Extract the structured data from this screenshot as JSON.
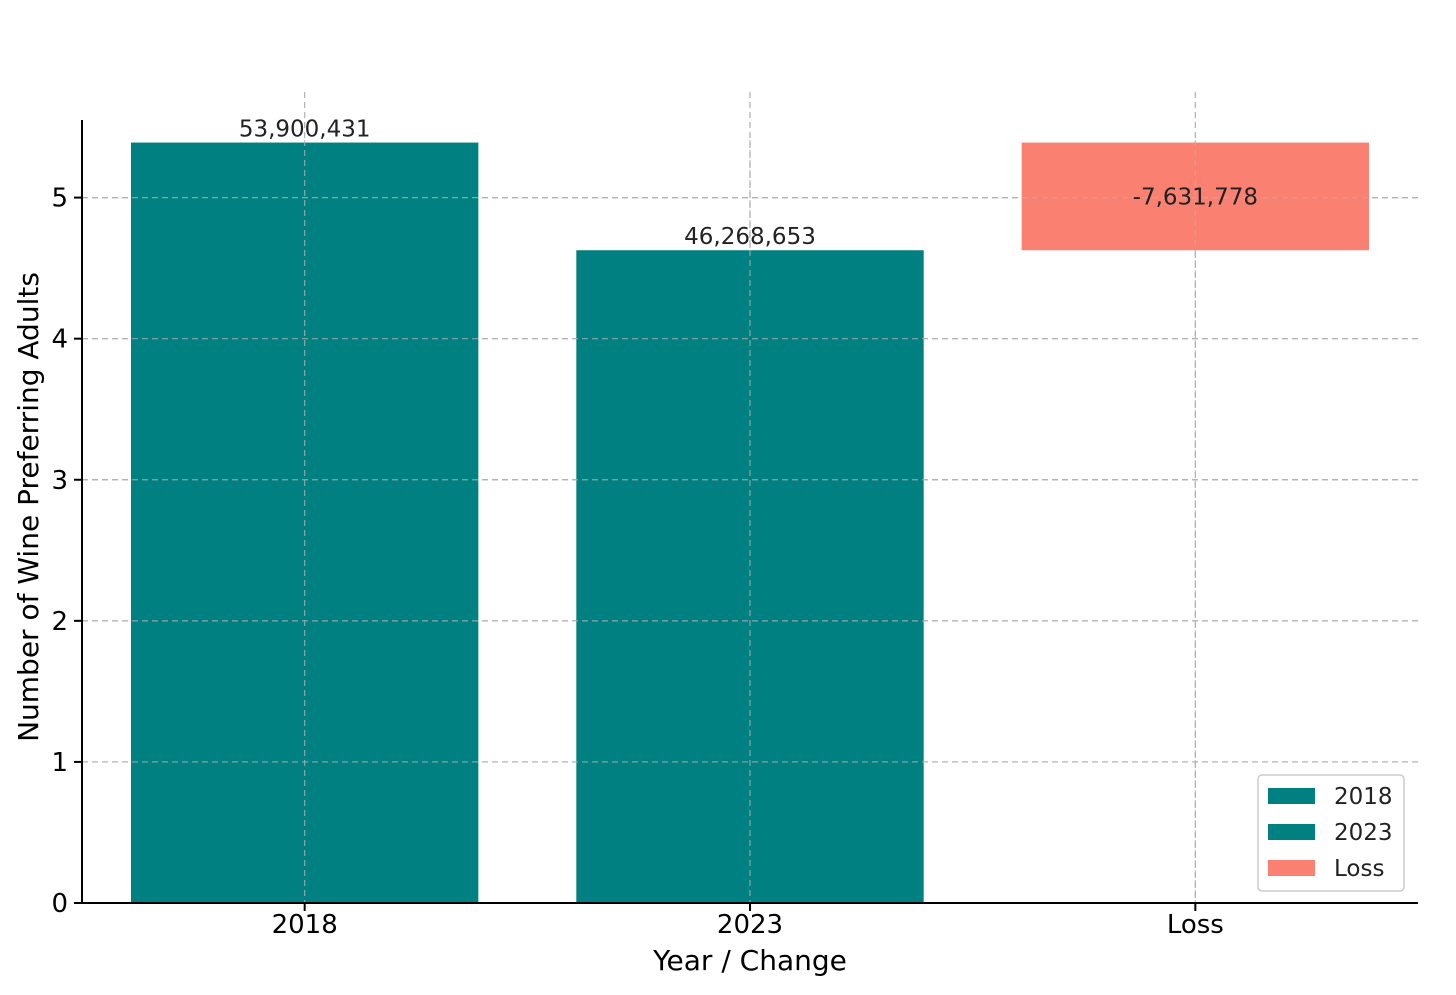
{
  "chart_data": {
    "type": "bar",
    "title": "",
    "xlabel": "Year / Change",
    "ylabel": "Number of Wine Preferring Adults",
    "categories": [
      "2018",
      "2023",
      "Loss"
    ],
    "bars": [
      {
        "category": "2018",
        "bottom": 0,
        "top": 5.3900431,
        "color": "#008080",
        "label": "53,900,431",
        "label_position": "above"
      },
      {
        "category": "2023",
        "bottom": 0,
        "top": 4.6268653,
        "color": "#008080",
        "label": "46,268,653",
        "label_position": "above"
      },
      {
        "category": "Loss",
        "bottom": 4.6268653,
        "top": 5.3900431,
        "color": "#fa8072",
        "label": "-7,631,778",
        "label_position": "inside"
      }
    ],
    "yticks": [
      0,
      1,
      2,
      3,
      4,
      5
    ],
    "ylim": [
      0,
      5.55
    ],
    "grid": true,
    "legend": {
      "placement": "bottom-right",
      "entries": [
        {
          "name": "2018",
          "color": "#008080"
        },
        {
          "name": "2023",
          "color": "#008080"
        },
        {
          "name": "Loss",
          "color": "#fa8072"
        }
      ]
    }
  }
}
